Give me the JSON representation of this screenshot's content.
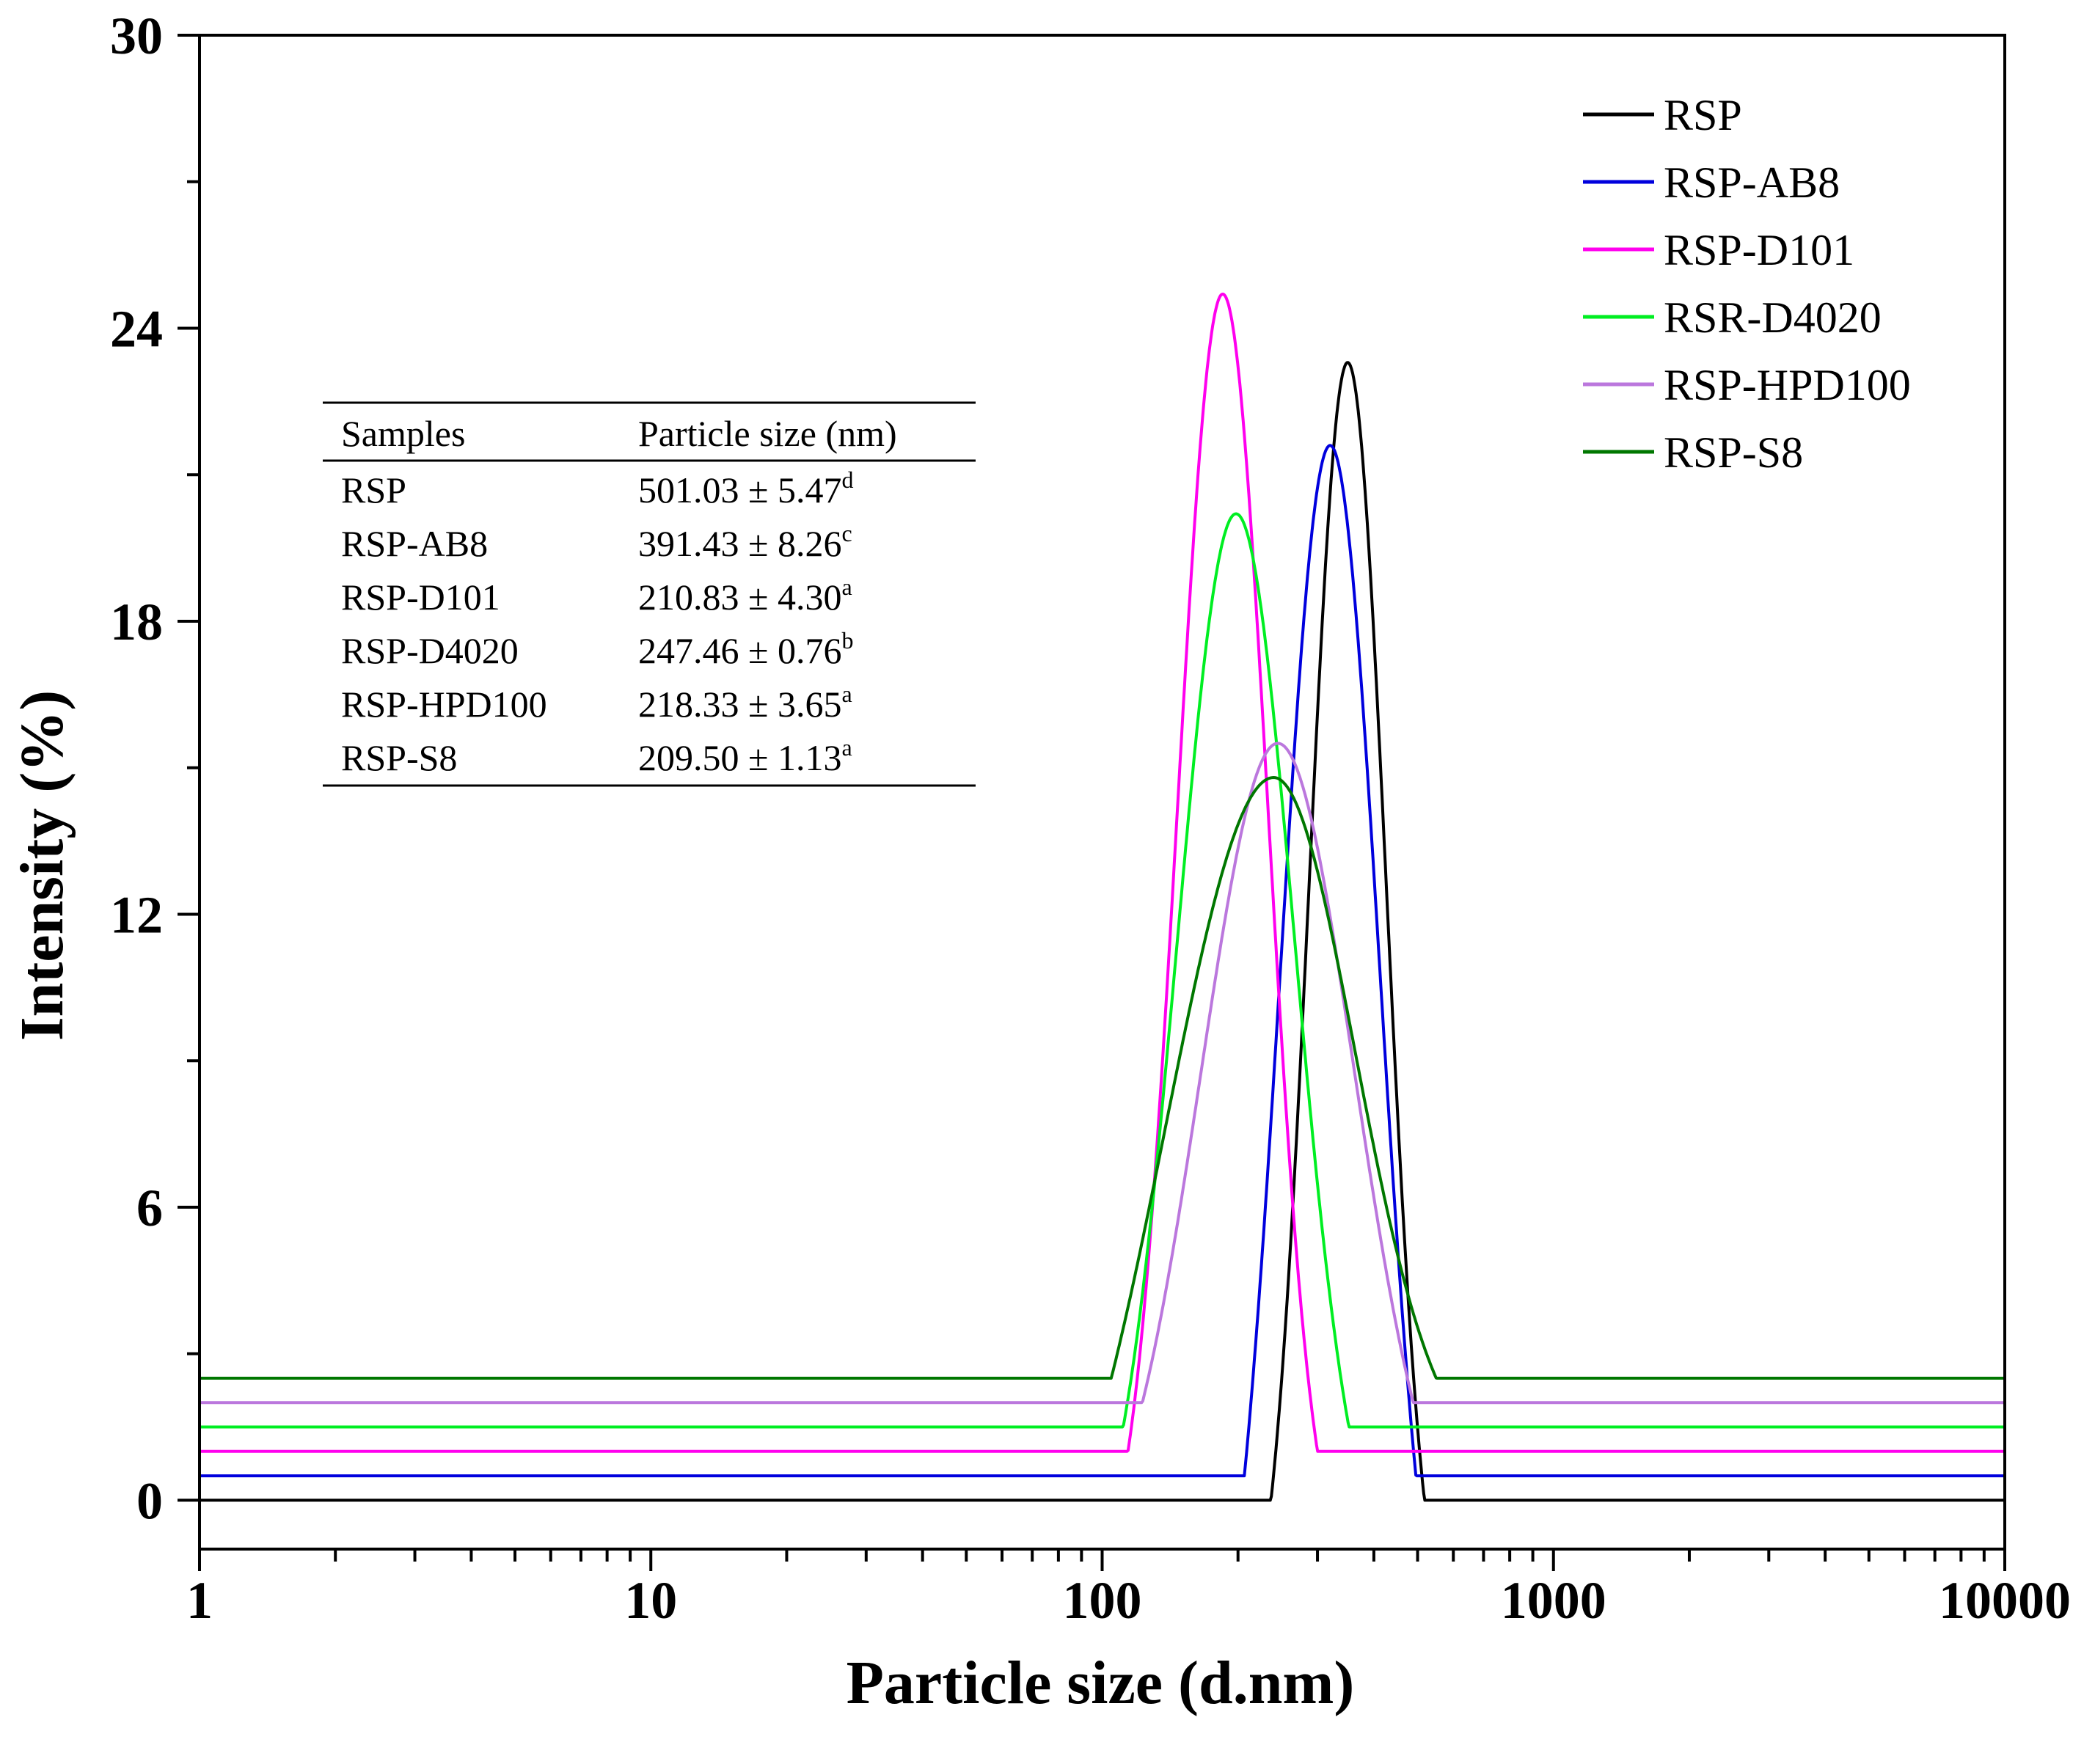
{
  "chart_data": {
    "type": "line",
    "title": "",
    "xlabel": "Particle size (d.nm)",
    "ylabel": "Intensity (%)",
    "xscale": "log",
    "xlim": [
      1,
      10000
    ],
    "ylim": [
      -1,
      30
    ],
    "xticks": [
      1,
      10,
      100,
      1000,
      10000
    ],
    "xtick_labels": [
      "1",
      "10",
      "100",
      "1000",
      "10000"
    ],
    "yticks": [
      0,
      6,
      12,
      18,
      24,
      30
    ],
    "ytick_labels": [
      "0",
      "6",
      "12",
      "18",
      "24",
      "30"
    ],
    "legend_position": "top-right",
    "series": [
      {
        "name": "RSP",
        "color": "#000000",
        "baseline": 0.0,
        "peak_x": 350,
        "peak_y": 23.3,
        "sigma_left": 0.085,
        "sigma_right": 0.085,
        "cutoff": 0.17
      },
      {
        "name": "RSP-AB8",
        "color": "#0000dd",
        "baseline": 0.5,
        "peak_x": 320,
        "peak_y": 21.6,
        "sigma_left": 0.11,
        "sigma_right": 0.11,
        "cutoff": 0.19
      },
      {
        "name": "RSP-D101",
        "color": "#ff00ee",
        "baseline": 1.0,
        "peak_x": 185,
        "peak_y": 24.7,
        "sigma_left": 0.1,
        "sigma_right": 0.1,
        "cutoff": 0.21
      },
      {
        "name": "RSR-D4020",
        "color": "#00ee22",
        "baseline": 1.5,
        "peak_x": 198,
        "peak_y": 20.2,
        "sigma_left": 0.13,
        "sigma_right": 0.13,
        "cutoff": 0.25
      },
      {
        "name": "RSP-HPD100",
        "color": "#bb77dd",
        "baseline": 2.0,
        "peak_x": 245,
        "peak_y": 15.5,
        "sigma_left": 0.17,
        "sigma_right": 0.17,
        "cutoff": 0.3
      },
      {
        "name": "RSP-S8",
        "color": "#007700",
        "baseline": 2.5,
        "peak_x": 240,
        "peak_y": 14.8,
        "sigma_left": 0.24,
        "sigma_right": 0.18,
        "cutoff": 0.36
      }
    ],
    "inset_table": {
      "headers": [
        "Samples",
        "Particle size (nm)"
      ],
      "rows": [
        {
          "sample": "RSP",
          "value": "501.03 ± 5.47",
          "sup": "d"
        },
        {
          "sample": "RSP-AB8",
          "value": "391.43 ± 8.26",
          "sup": "c"
        },
        {
          "sample": "RSP-D101",
          "value": "210.83 ± 4.30",
          "sup": "a"
        },
        {
          "sample": "RSP-D4020",
          "value": "247.46 ± 0.76",
          "sup": "b"
        },
        {
          "sample": "RSP-HPD100",
          "value": "218.33 ± 3.65",
          "sup": "a"
        },
        {
          "sample": "RSP-S8",
          "value": "209.50 ± 1.13",
          "sup": "a"
        }
      ]
    }
  }
}
